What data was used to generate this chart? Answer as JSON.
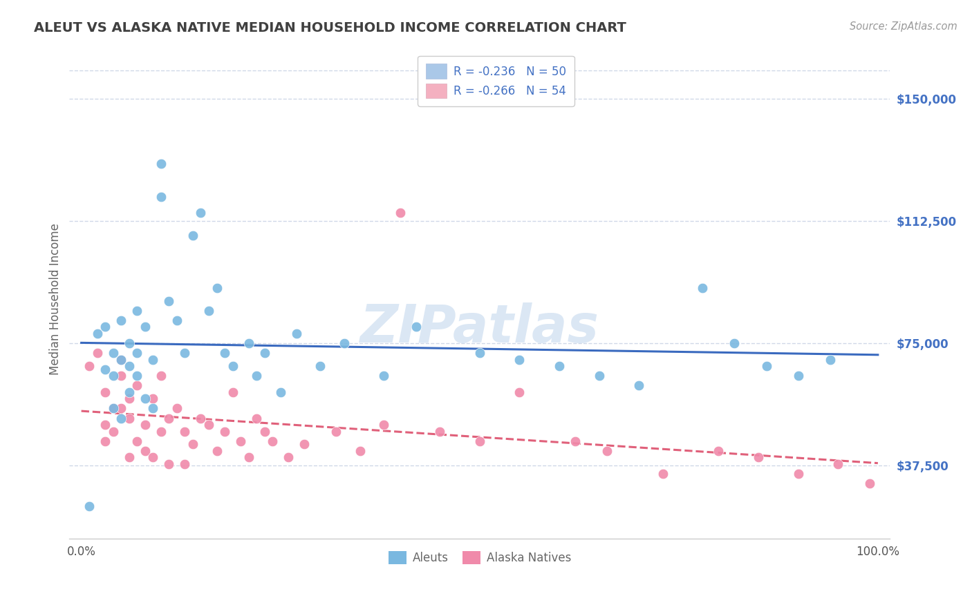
{
  "title": "ALEUT VS ALASKA NATIVE MEDIAN HOUSEHOLD INCOME CORRELATION CHART",
  "source": "Source: ZipAtlas.com",
  "ylabel": "Median Household Income",
  "yticks": [
    37500,
    75000,
    112500,
    150000
  ],
  "ytick_labels": [
    "$37,500",
    "$75,000",
    "$112,500",
    "$150,000"
  ],
  "ymin": 15000,
  "ymax": 162000,
  "xmin": -0.015,
  "xmax": 1.015,
  "legend_line1": "R = -0.236   N = 50",
  "legend_line2": "R = -0.266   N = 54",
  "legend_color1": "#aac8e8",
  "legend_color2": "#f4b0c0",
  "aleuts_dot_color": "#7ab8e0",
  "alaska_dot_color": "#f08aaa",
  "trendline_aleuts_color": "#3a6abf",
  "trendline_alaska_color": "#e0607a",
  "text_color": "#4472c4",
  "title_color": "#404040",
  "source_color": "#999999",
  "grid_color": "#d0d8e8",
  "bottom_label_color": "#666666",
  "background_color": "#ffffff",
  "watermark_color": "#ccddf0",
  "aleuts_x": [
    0.01,
    0.02,
    0.03,
    0.03,
    0.04,
    0.04,
    0.04,
    0.05,
    0.05,
    0.05,
    0.06,
    0.06,
    0.06,
    0.07,
    0.07,
    0.07,
    0.08,
    0.08,
    0.09,
    0.09,
    0.1,
    0.1,
    0.11,
    0.12,
    0.13,
    0.14,
    0.15,
    0.16,
    0.17,
    0.18,
    0.19,
    0.21,
    0.22,
    0.23,
    0.25,
    0.27,
    0.3,
    0.33,
    0.38,
    0.42,
    0.5,
    0.55,
    0.6,
    0.65,
    0.7,
    0.78,
    0.82,
    0.86,
    0.9,
    0.94
  ],
  "aleuts_y": [
    25000,
    78000,
    67000,
    80000,
    55000,
    65000,
    72000,
    52000,
    70000,
    82000,
    60000,
    68000,
    75000,
    72000,
    85000,
    65000,
    80000,
    58000,
    55000,
    70000,
    120000,
    130000,
    88000,
    82000,
    72000,
    108000,
    115000,
    85000,
    92000,
    72000,
    68000,
    75000,
    65000,
    72000,
    60000,
    78000,
    68000,
    75000,
    65000,
    80000,
    72000,
    70000,
    68000,
    65000,
    62000,
    92000,
    75000,
    68000,
    65000,
    70000
  ],
  "alaska_x": [
    0.01,
    0.02,
    0.03,
    0.03,
    0.03,
    0.04,
    0.04,
    0.05,
    0.05,
    0.05,
    0.06,
    0.06,
    0.06,
    0.07,
    0.07,
    0.08,
    0.08,
    0.09,
    0.09,
    0.1,
    0.1,
    0.11,
    0.11,
    0.12,
    0.13,
    0.13,
    0.14,
    0.15,
    0.16,
    0.17,
    0.18,
    0.19,
    0.2,
    0.21,
    0.22,
    0.23,
    0.24,
    0.26,
    0.28,
    0.32,
    0.35,
    0.38,
    0.4,
    0.45,
    0.5,
    0.55,
    0.62,
    0.66,
    0.73,
    0.8,
    0.85,
    0.9,
    0.95,
    0.99
  ],
  "alaska_y": [
    68000,
    72000,
    60000,
    50000,
    45000,
    55000,
    48000,
    65000,
    55000,
    70000,
    52000,
    58000,
    40000,
    62000,
    45000,
    50000,
    42000,
    58000,
    40000,
    48000,
    65000,
    52000,
    38000,
    55000,
    48000,
    38000,
    44000,
    52000,
    50000,
    42000,
    48000,
    60000,
    45000,
    40000,
    52000,
    48000,
    45000,
    40000,
    44000,
    48000,
    42000,
    50000,
    115000,
    48000,
    45000,
    60000,
    45000,
    42000,
    35000,
    42000,
    40000,
    35000,
    38000,
    32000
  ]
}
